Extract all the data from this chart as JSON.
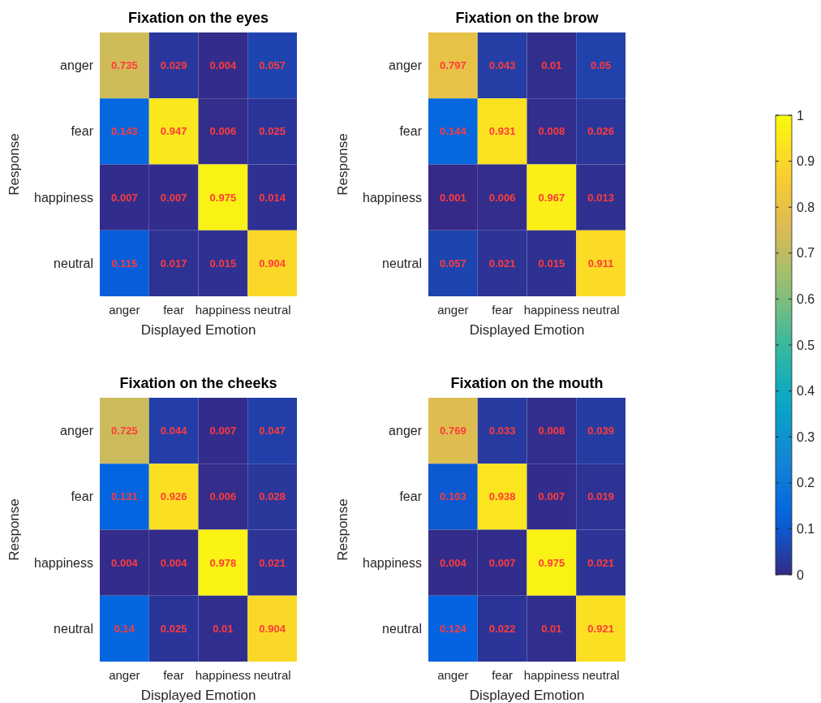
{
  "chart_data": [
    {
      "type": "heatmap",
      "title": "Fixation on the eyes",
      "xlabel": "Displayed Emotion",
      "ylabel": "Response",
      "categories": [
        "anger",
        "fear",
        "happiness",
        "neutral"
      ],
      "y_categories": [
        "anger",
        "fear",
        "happiness",
        "neutral"
      ],
      "cells": [
        [
          0.735,
          0.029,
          0.004,
          0.057
        ],
        [
          0.143,
          0.947,
          0.006,
          0.025
        ],
        [
          0.007,
          0.007,
          0.975,
          0.014
        ],
        [
          0.115,
          0.017,
          0.015,
          0.904
        ]
      ],
      "data_labels": true
    },
    {
      "type": "heatmap",
      "title": "Fixation on the brow",
      "xlabel": "Displayed Emotion",
      "ylabel": "Response",
      "categories": [
        "anger",
        "fear",
        "happiness",
        "neutral"
      ],
      "y_categories": [
        "anger",
        "fear",
        "happiness",
        "neutral"
      ],
      "cells": [
        [
          0.797,
          0.043,
          0.01,
          0.05
        ],
        [
          0.144,
          0.931,
          0.008,
          0.026
        ],
        [
          0.001,
          0.006,
          0.967,
          0.013
        ],
        [
          0.057,
          0.021,
          0.015,
          0.911
        ]
      ],
      "clim": [
        0,
        1
      ],
      "cticks": [
        0,
        0.1,
        0.2,
        0.3,
        0.4,
        0.5,
        0.6,
        0.7,
        0.8,
        0.9,
        1
      ],
      "data_labels": true
    },
    {
      "type": "heatmap",
      "title": "Fixation on the cheeks",
      "xlabel": "Displayed Emotion",
      "ylabel": "Response",
      "categories": [
        "anger",
        "fear",
        "happiness",
        "neutral"
      ],
      "y_categories": [
        "anger",
        "fear",
        "happiness",
        "neutral"
      ],
      "cells": [
        [
          0.725,
          0.044,
          0.007,
          0.047
        ],
        [
          0.131,
          0.926,
          0.006,
          0.028
        ],
        [
          0.004,
          0.004,
          0.978,
          0.021
        ],
        [
          0.14,
          0.025,
          0.01,
          0.904
        ]
      ],
      "data_labels": true
    },
    {
      "type": "heatmap",
      "title": "Fixation on the mouth",
      "xlabel": "Displayed Emotion",
      "ylabel": "Response",
      "categories": [
        "anger",
        "fear",
        "happiness",
        "neutral"
      ],
      "y_categories": [
        "anger",
        "fear",
        "happiness",
        "neutral"
      ],
      "cells": [
        [
          0.769,
          0.033,
          0.008,
          0.039
        ],
        [
          0.103,
          0.938,
          0.007,
          0.019
        ],
        [
          0.004,
          0.007,
          0.975,
          0.021
        ],
        [
          0.124,
          0.022,
          0.01,
          0.921
        ]
      ],
      "data_labels": true
    }
  ]
}
